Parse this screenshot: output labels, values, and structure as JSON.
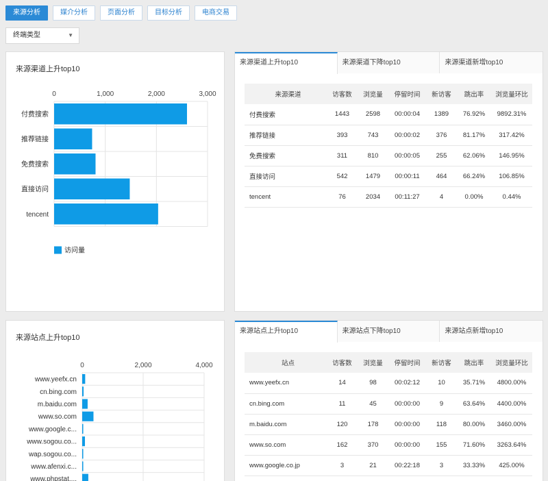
{
  "top_tabs": [
    "来源分析",
    "媒介分析",
    "页面分析",
    "目标分析",
    "电商交易"
  ],
  "filter": {
    "selected": "终端类型"
  },
  "channel_chart": {
    "title": "来源渠道上升top10",
    "legend": "访问量"
  },
  "channel_tabs": [
    "来源渠道上升top10",
    "来源渠道下降top10",
    "来源渠道新增top10"
  ],
  "channel_table": {
    "headers": [
      "来源渠道",
      "访客数",
      "浏览量",
      "停留时间",
      "新访客",
      "跳出率",
      "浏览量环比"
    ],
    "rows": [
      [
        "付费搜索",
        "1443",
        "2598",
        "00:00:04",
        "1389",
        "76.92%",
        "9892.31%"
      ],
      [
        "推荐链接",
        "393",
        "743",
        "00:00:02",
        "376",
        "81.17%",
        "317.42%"
      ],
      [
        "免费搜索",
        "311",
        "810",
        "00:00:05",
        "255",
        "62.06%",
        "146.95%"
      ],
      [
        "直接访问",
        "542",
        "1479",
        "00:00:11",
        "464",
        "66.24%",
        "106.85%"
      ],
      [
        "tencent",
        "76",
        "2034",
        "00:11:27",
        "4",
        "0.00%",
        "0.44%"
      ]
    ]
  },
  "site_chart": {
    "title": "来源站点上升top10"
  },
  "site_tabs": [
    "来源站点上升top10",
    "来源站点下降top10",
    "来源站点新增top10"
  ],
  "site_table": {
    "headers": [
      "站点",
      "访客数",
      "浏览量",
      "停留时间",
      "新访客",
      "跳出率",
      "浏览量环比"
    ],
    "rows": [
      [
        "www.yeefx.cn",
        "14",
        "98",
        "00:02:12",
        "10",
        "35.71%",
        "4800.00%"
      ],
      [
        "cn.bing.com",
        "11",
        "45",
        "00:00:00",
        "9",
        "63.64%",
        "4400.00%"
      ],
      [
        "m.baidu.com",
        "120",
        "178",
        "00:00:00",
        "118",
        "80.00%",
        "3460.00%"
      ],
      [
        "www.so.com",
        "162",
        "370",
        "00:00:00",
        "155",
        "71.60%",
        "3263.64%"
      ],
      [
        "www.google.co.jp",
        "3",
        "21",
        "00:22:18",
        "3",
        "33.33%",
        "425.00%"
      ]
    ]
  },
  "chart_data": [
    {
      "type": "bar",
      "orientation": "horizontal",
      "categories": [
        "付费搜索",
        "推荐链接",
        "免费搜索",
        "直接访问",
        "tencent"
      ],
      "series": [
        {
          "name": "访问量",
          "values": [
            2598,
            743,
            810,
            1479,
            2034
          ]
        }
      ],
      "xticks": [
        "0",
        "1,000",
        "2,000",
        "3,000"
      ],
      "xlim": [
        0,
        3000
      ],
      "grid": true,
      "legend": "bottom-left",
      "color": "#0f9be6"
    },
    {
      "type": "bar",
      "orientation": "horizontal",
      "categories": [
        "www.yeefx.cn",
        "cn.bing.com",
        "m.baidu.com",
        "www.so.com",
        "www.google.c...",
        "www.sogou.co...",
        "wap.sogou.co...",
        "www.afenxi.c...",
        "www.phpstat...."
      ],
      "series": [
        {
          "values": [
            98,
            45,
            178,
            370,
            21,
            90,
            10,
            20,
            200
          ]
        }
      ],
      "xticks": [
        "0",
        "2,000",
        "4,000"
      ],
      "xlim": [
        0,
        4000
      ],
      "grid": true,
      "color": "#0f9be6"
    }
  ]
}
